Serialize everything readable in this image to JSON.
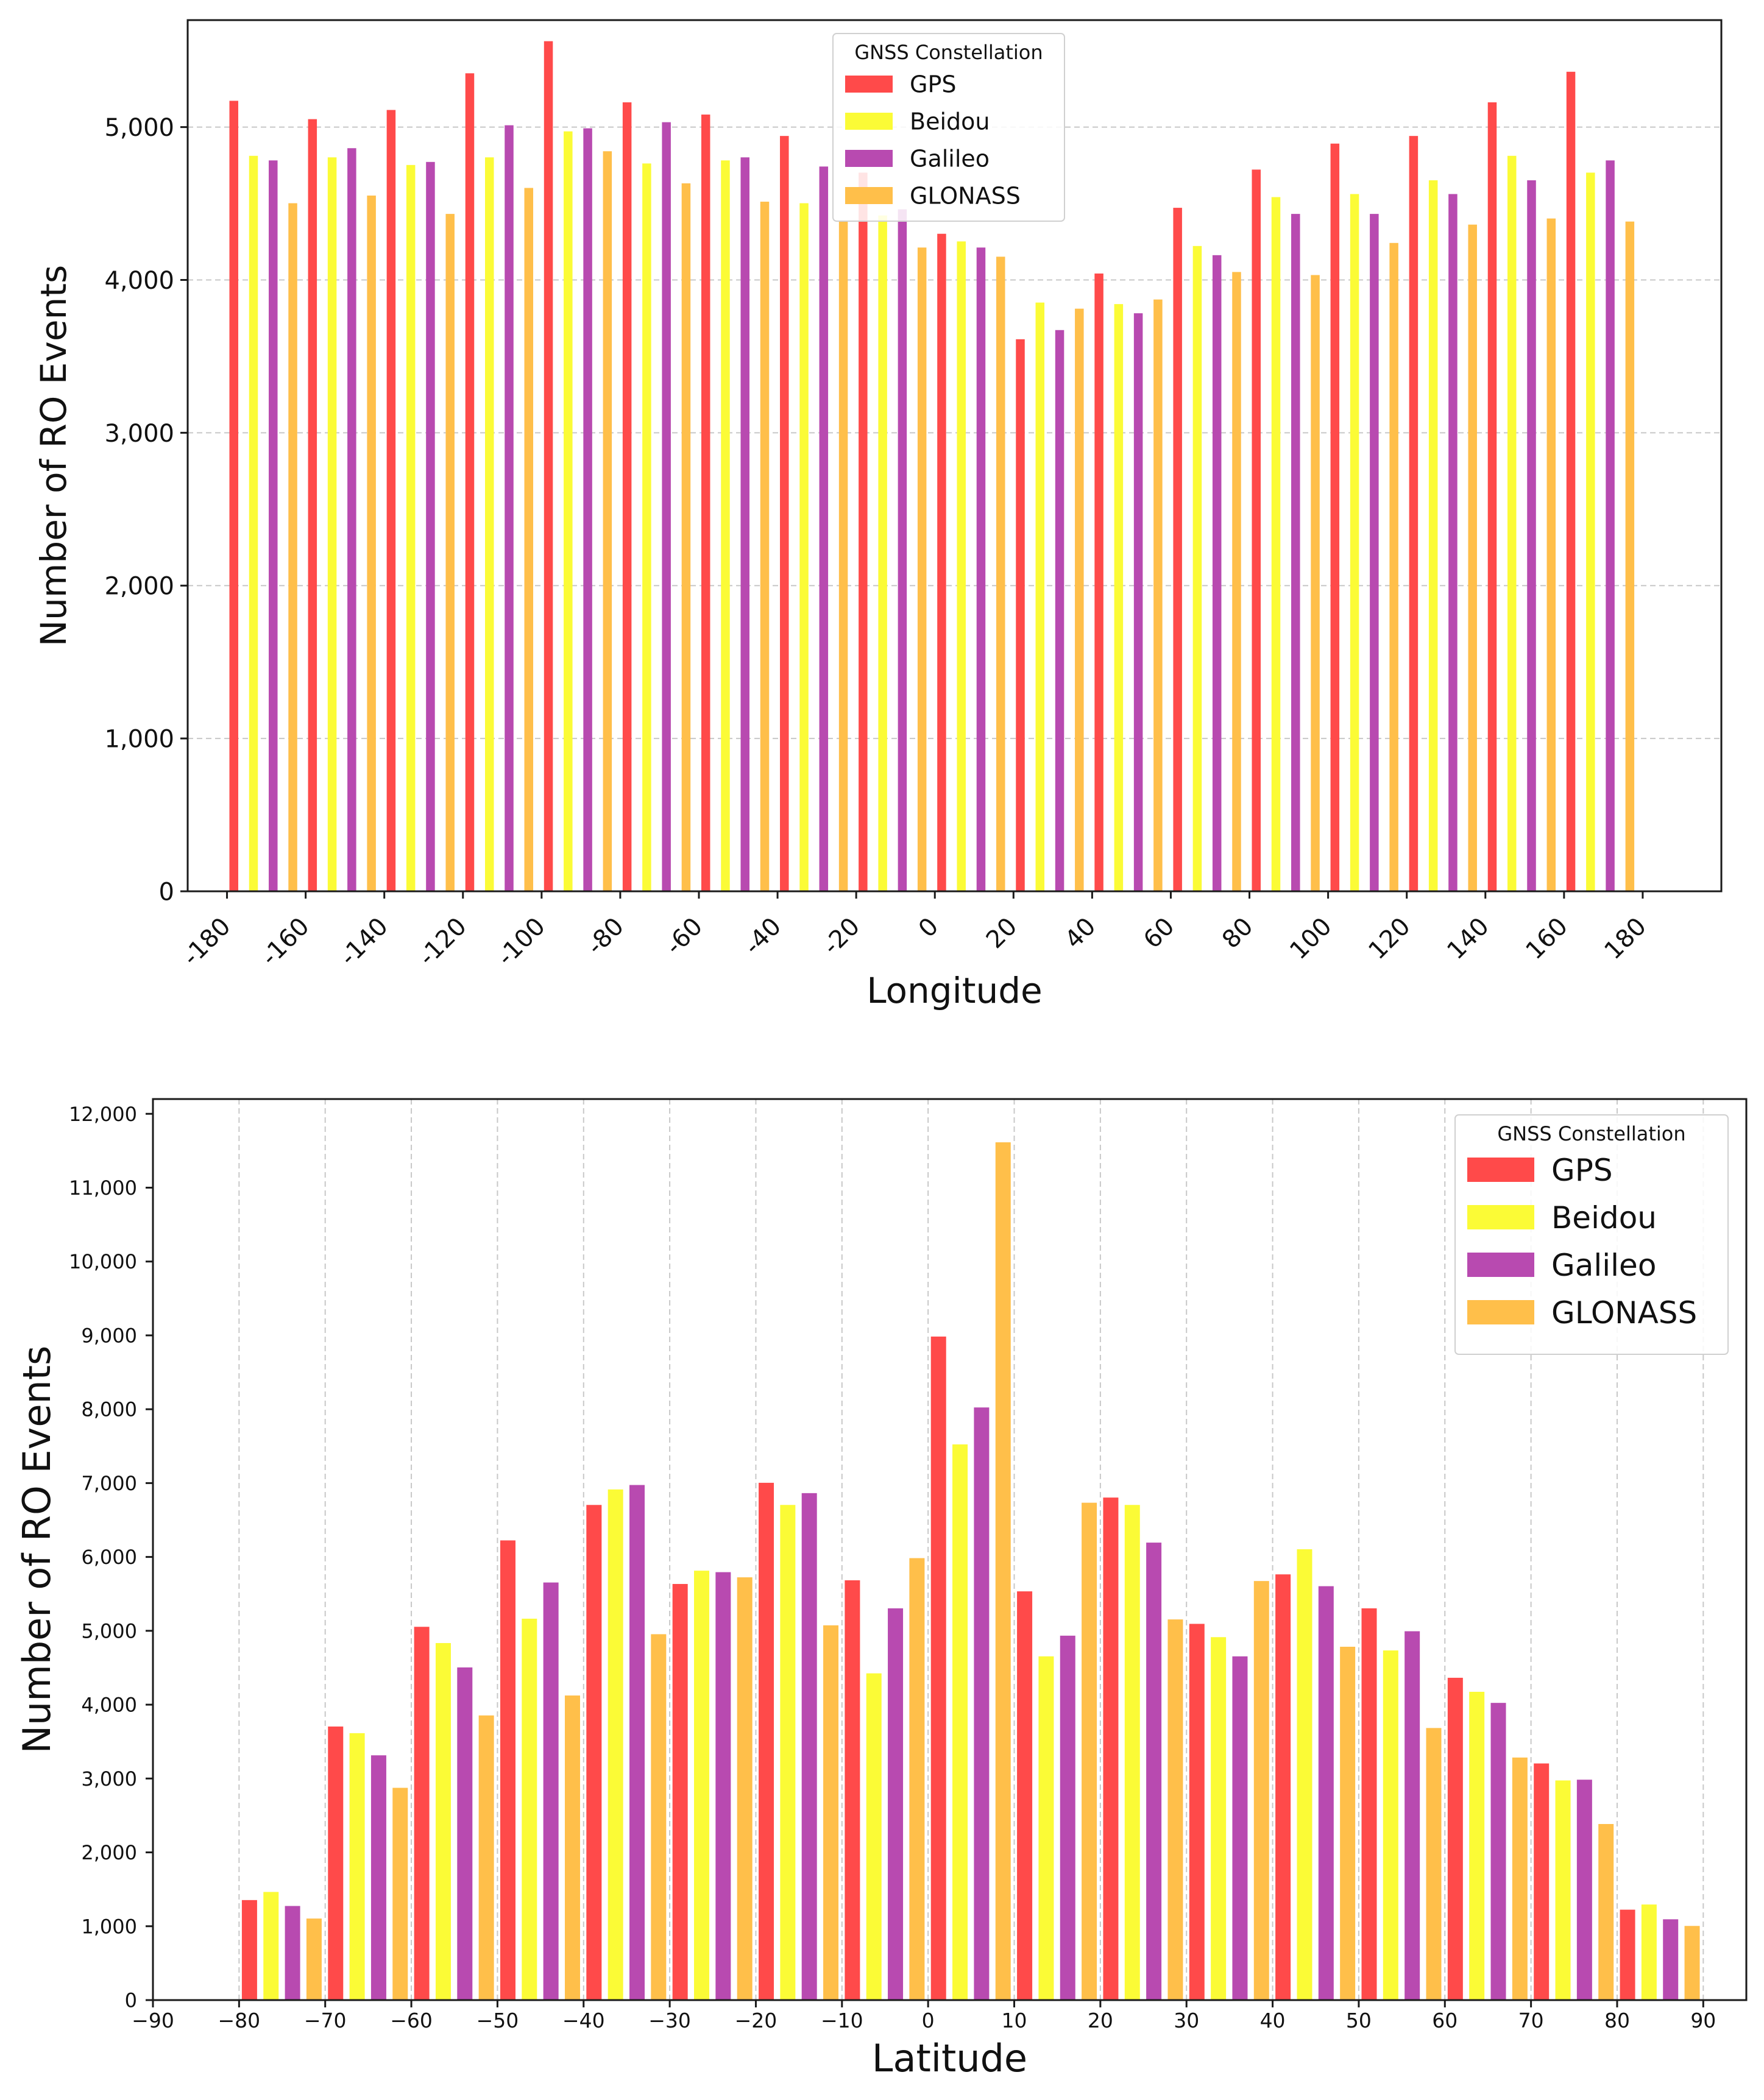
{
  "colors": {
    "GPS": "#ff4a4a",
    "Beidou": "#fbfb36",
    "Galileo": "#b84ab0",
    "GLONASS": "#ffbf4a"
  },
  "chart_data": [
    {
      "type": "bar",
      "title": "",
      "xlabel": "Longitude",
      "ylabel": "Number of RO Events",
      "ylim": [
        0,
        5700
      ],
      "yticks": [
        0,
        1000,
        2000,
        3000,
        4000,
        5000
      ],
      "ytick_labels": [
        "0",
        "1,000",
        "2,000",
        "3,000",
        "4,000",
        "5,000"
      ],
      "xlim": [
        -190,
        200
      ],
      "xticks": [
        -180,
        -160,
        -140,
        -120,
        -100,
        -80,
        -60,
        -40,
        -20,
        0,
        20,
        40,
        60,
        80,
        100,
        120,
        140,
        160,
        180
      ],
      "xtick_labels": [
        "-180",
        "-160",
        "-140",
        "-120",
        "-100",
        "-80",
        "-60",
        "-40",
        "-20",
        "0",
        "20",
        "40",
        "60",
        "80",
        "100",
        "120",
        "140",
        "160",
        "180"
      ],
      "bin_width": 20,
      "grid": "horizontal",
      "legend": {
        "title": "GNSS Constellation",
        "placement": "top-center",
        "entries": [
          "GPS",
          "Beidou",
          "Galileo",
          "GLONASS"
        ]
      },
      "categories": [
        -180,
        -160,
        -140,
        -120,
        -100,
        -80,
        -60,
        -40,
        -20,
        0,
        20,
        40,
        60,
        80,
        100,
        120,
        140,
        160
      ],
      "series": [
        {
          "name": "GPS",
          "values": [
            5170,
            5050,
            5110,
            5350,
            5560,
            5160,
            5080,
            4940,
            4700,
            4300,
            3610,
            4040,
            4470,
            4720,
            4890,
            4940,
            5160,
            5360
          ]
        },
        {
          "name": "Beidou",
          "values": [
            4810,
            4800,
            4750,
            4800,
            4970,
            4760,
            4780,
            4500,
            4420,
            4250,
            3850,
            3840,
            4220,
            4540,
            4560,
            4650,
            4810,
            4700
          ]
        },
        {
          "name": "Galileo",
          "values": [
            4780,
            4860,
            4770,
            5010,
            4990,
            5030,
            4800,
            4740,
            4460,
            4210,
            3670,
            3780,
            4160,
            4430,
            4430,
            4560,
            4650,
            4780
          ]
        },
        {
          "name": "GLONASS",
          "values": [
            4500,
            4550,
            4430,
            4600,
            4840,
            4630,
            4510,
            4380,
            4210,
            4150,
            3810,
            3870,
            4050,
            4030,
            4240,
            4360,
            4400,
            4380
          ]
        }
      ]
    },
    {
      "type": "bar",
      "title": "",
      "xlabel": "Latitude",
      "ylabel": "Number of RO Events",
      "ylim": [
        0,
        12200
      ],
      "yticks": [
        0,
        1000,
        2000,
        3000,
        4000,
        5000,
        6000,
        7000,
        8000,
        9000,
        10000,
        11000,
        12000
      ],
      "ytick_labels": [
        "0",
        "1,000",
        "2,000",
        "3,000",
        "4,000",
        "5,000",
        "6,000",
        "7,000",
        "8,000",
        "9,000",
        "10,000",
        "11,000",
        "12,000"
      ],
      "xlim": [
        -90,
        95
      ],
      "xticks": [
        -90,
        -80,
        -70,
        -60,
        -50,
        -40,
        -30,
        -20,
        -10,
        0,
        10,
        20,
        30,
        40,
        50,
        60,
        70,
        80,
        90
      ],
      "xtick_labels": [
        "−90",
        "−80",
        "−70",
        "−60",
        "−50",
        "−40",
        "−30",
        "−20",
        "−10",
        "0",
        "10",
        "20",
        "30",
        "40",
        "50",
        "60",
        "70",
        "80",
        "90"
      ],
      "bin_width": 10,
      "grid": "vertical",
      "legend": {
        "title": "GNSS Constellation",
        "placement": "top-right",
        "entries": [
          "GPS",
          "Beidou",
          "Galileo",
          "GLONASS"
        ]
      },
      "categories": [
        -80,
        -70,
        -60,
        -50,
        -40,
        -30,
        -20,
        -10,
        0,
        10,
        20,
        30,
        40,
        50,
        60,
        70,
        80
      ],
      "series": [
        {
          "name": "GPS",
          "values": [
            1350,
            3700,
            5050,
            6220,
            6700,
            5630,
            7000,
            5680,
            8980,
            5530,
            6800,
            5090,
            5760,
            5300,
            4360,
            3200,
            1220
          ]
        },
        {
          "name": "Beidou",
          "values": [
            1460,
            3610,
            4830,
            5160,
            6910,
            5810,
            6700,
            4420,
            7520,
            4650,
            6700,
            4910,
            6100,
            4730,
            4170,
            2970,
            1290
          ]
        },
        {
          "name": "Galileo",
          "values": [
            1270,
            3310,
            4500,
            5650,
            6970,
            5790,
            6860,
            5300,
            8020,
            4930,
            6190,
            4650,
            5600,
            4990,
            4020,
            2980,
            1090
          ]
        },
        {
          "name": "GLONASS",
          "values": [
            1100,
            2870,
            3850,
            4120,
            4950,
            5720,
            5070,
            5980,
            11610,
            6730,
            5150,
            5670,
            4780,
            3680,
            3280,
            2380,
            1000
          ]
        }
      ]
    }
  ]
}
